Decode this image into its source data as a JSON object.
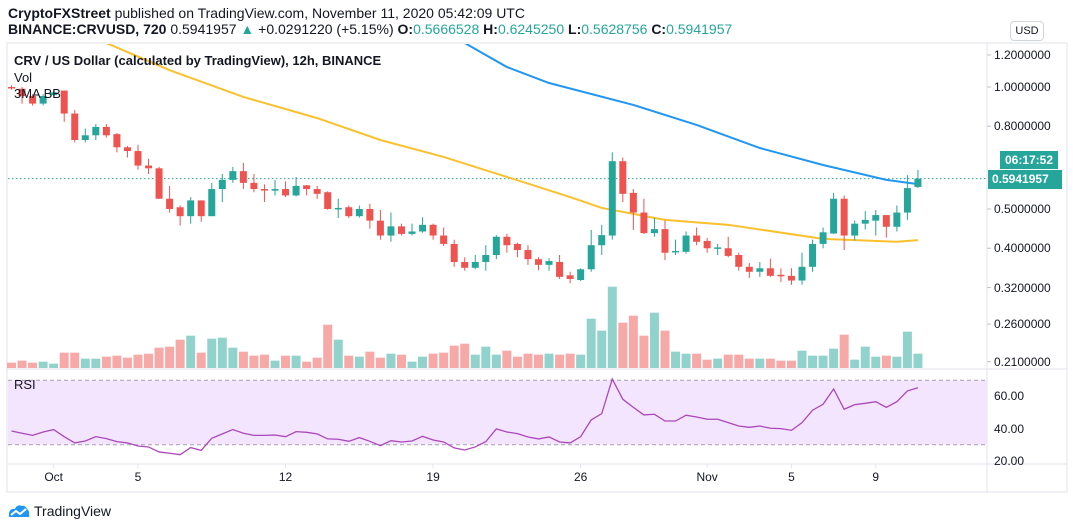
{
  "header": {
    "publisher": "CryptoFXStreet",
    "published_text": "published on TradingView.com, November 11, 2020 05:42:09 UTC",
    "symbol": "BINANCE:CRVUSD, 720",
    "last": "0.5941957",
    "change": "+0.0291220 (+5.15%)",
    "change_icon": "triangle-up-icon",
    "o_label": "O:",
    "o": "0.5666528",
    "h_label": "H:",
    "h": "0.6245250",
    "l_label": "L:",
    "l": "0.5628756",
    "c_label": "C:",
    "c": "0.5941957"
  },
  "legend": {
    "title": "CRV / US Dollar (calculated by TradingView), 12h, BINANCE",
    "vol": "Vol",
    "ma": "3MA BB",
    "rsi": "RSI"
  },
  "price_axis": {
    "currency_button": "USD",
    "scale": "log",
    "ticks": [
      "1.2000000",
      "1.0000000",
      "0.8000000",
      "0.5000000",
      "0.4000000",
      "0.3200000",
      "0.2600000",
      "0.2100000"
    ],
    "last_price_label": "0.5941957",
    "countdown": "06:17:52"
  },
  "rsi_axis": {
    "ticks": [
      "60.00",
      "40.00",
      "20.00"
    ],
    "upper_band": 70,
    "lower_band": 30
  },
  "time_axis": {
    "ticks": [
      {
        "label": "Oct",
        "t": "10-01 00"
      },
      {
        "label": "5",
        "t": "10-05 00"
      },
      {
        "label": "12",
        "t": "10-12 00"
      },
      {
        "label": "19",
        "t": "10-19 00"
      },
      {
        "label": "26",
        "t": "10-26 00"
      },
      {
        "label": "Nov",
        "t": "11-01 00"
      },
      {
        "label": "5",
        "t": "11-05 00"
      },
      {
        "label": "9",
        "t": "11-09 00"
      }
    ]
  },
  "footer": {
    "brand": "TradingView"
  },
  "colors": {
    "up": "#26a69a",
    "down": "#ef5350",
    "vol_up": "#92d2cc",
    "vol_down": "#f7a9a7",
    "ma_blue": "#2196f3",
    "ma_yellow": "#fbc02d",
    "rsi_line": "#ab47bc",
    "rsi_fill": "#f3e5fd"
  },
  "chart_data": {
    "type": "candlestick",
    "interval": "12h",
    "columns": [
      "t",
      "open",
      "high",
      "low",
      "close",
      "volume_rel"
    ],
    "candles": [
      [
        "09-29 00",
        1.0,
        1.01,
        0.985,
        0.995,
        16
      ],
      [
        "09-29 12",
        0.99,
        1.0,
        0.91,
        0.95,
        22
      ],
      [
        "09-30 00",
        0.95,
        0.96,
        0.9,
        0.91,
        16
      ],
      [
        "09-30 12",
        0.91,
        0.96,
        0.9,
        0.95,
        19
      ],
      [
        "10-01 00",
        0.955,
        0.98,
        0.95,
        0.97,
        13
      ],
      [
        "10-01 12",
        0.98,
        0.98,
        0.82,
        0.86,
        46
      ],
      [
        "10-02 00",
        0.86,
        0.877,
        0.73,
        0.74,
        46
      ],
      [
        "10-02 12",
        0.74,
        0.79,
        0.73,
        0.76,
        28
      ],
      [
        "10-03 00",
        0.76,
        0.81,
        0.74,
        0.797,
        28
      ],
      [
        "10-03 12",
        0.797,
        0.81,
        0.75,
        0.76,
        34
      ],
      [
        "10-04 00",
        0.765,
        0.77,
        0.69,
        0.71,
        37
      ],
      [
        "10-04 12",
        0.71,
        0.715,
        0.67,
        0.695,
        31
      ],
      [
        "10-05 00",
        0.695,
        0.72,
        0.625,
        0.64,
        40
      ],
      [
        "10-05 12",
        0.64,
        0.665,
        0.61,
        0.63,
        43
      ],
      [
        "10-06 00",
        0.63,
        0.635,
        0.53,
        0.53,
        61
      ],
      [
        "10-06 12",
        0.53,
        0.57,
        0.49,
        0.5,
        64
      ],
      [
        "10-07 00",
        0.505,
        0.51,
        0.455,
        0.48,
        85
      ],
      [
        "10-07 12",
        0.48,
        0.535,
        0.46,
        0.525,
        97
      ],
      [
        "10-08 00",
        0.525,
        0.525,
        0.465,
        0.48,
        46
      ],
      [
        "10-08 12",
        0.48,
        0.58,
        0.48,
        0.56,
        88
      ],
      [
        "10-09 00",
        0.56,
        0.61,
        0.52,
        0.59,
        91
      ],
      [
        "10-09 12",
        0.59,
        0.635,
        0.58,
        0.62,
        61
      ],
      [
        "10-10 00",
        0.62,
        0.65,
        0.56,
        0.58,
        49
      ],
      [
        "10-10 12",
        0.58,
        0.61,
        0.55,
        0.56,
        37
      ],
      [
        "10-11 00",
        0.56,
        0.575,
        0.52,
        0.555,
        40
      ],
      [
        "10-11 12",
        0.555,
        0.59,
        0.54,
        0.56,
        22
      ],
      [
        "10-12 00",
        0.56,
        0.585,
        0.535,
        0.54,
        37
      ],
      [
        "10-12 12",
        0.54,
        0.6,
        0.537,
        0.57,
        37
      ],
      [
        "10-13 00",
        0.572,
        0.573,
        0.54,
        0.56,
        19
      ],
      [
        "10-13 12",
        0.56,
        0.57,
        0.53,
        0.545,
        31
      ],
      [
        "10-14 00",
        0.55,
        0.553,
        0.498,
        0.5,
        130
      ],
      [
        "10-14 12",
        0.5,
        0.53,
        0.475,
        0.503,
        85
      ],
      [
        "10-15 00",
        0.505,
        0.51,
        0.475,
        0.48,
        37
      ],
      [
        "10-15 12",
        0.48,
        0.51,
        0.476,
        0.5,
        34
      ],
      [
        "10-16 00",
        0.5,
        0.515,
        0.447,
        0.468,
        49
      ],
      [
        "10-16 12",
        0.468,
        0.497,
        0.42,
        0.43,
        31
      ],
      [
        "10-17 00",
        0.43,
        0.49,
        0.415,
        0.453,
        43
      ],
      [
        "10-17 12",
        0.453,
        0.46,
        0.43,
        0.434,
        40
      ],
      [
        "10-18 00",
        0.434,
        0.46,
        0.43,
        0.44,
        19
      ],
      [
        "10-18 12",
        0.44,
        0.477,
        0.437,
        0.457,
        34
      ],
      [
        "10-19 00",
        0.457,
        0.46,
        0.42,
        0.43,
        43
      ],
      [
        "10-19 12",
        0.43,
        0.45,
        0.405,
        0.41,
        46
      ],
      [
        "10-20 00",
        0.41,
        0.42,
        0.36,
        0.37,
        67
      ],
      [
        "10-20 12",
        0.37,
        0.38,
        0.352,
        0.358,
        73
      ],
      [
        "10-21 00",
        0.358,
        0.385,
        0.355,
        0.37,
        40
      ],
      [
        "10-21 12",
        0.37,
        0.407,
        0.352,
        0.385,
        64
      ],
      [
        "10-22 00",
        0.385,
        0.431,
        0.376,
        0.427,
        40
      ],
      [
        "10-22 12",
        0.427,
        0.434,
        0.39,
        0.407,
        52
      ],
      [
        "10-23 00",
        0.41,
        0.413,
        0.38,
        0.396,
        34
      ],
      [
        "10-23 12",
        0.396,
        0.407,
        0.364,
        0.376,
        43
      ],
      [
        "10-24 00",
        0.376,
        0.38,
        0.353,
        0.364,
        40
      ],
      [
        "10-24 12",
        0.364,
        0.378,
        0.352,
        0.372,
        43
      ],
      [
        "10-25 00",
        0.37,
        0.385,
        0.336,
        0.34,
        40
      ],
      [
        "10-25 12",
        0.343,
        0.35,
        0.328,
        0.336,
        43
      ],
      [
        "10-26 00",
        0.334,
        0.357,
        0.332,
        0.355,
        40
      ],
      [
        "10-26 12",
        0.355,
        0.444,
        0.35,
        0.407,
        148
      ],
      [
        "10-27 00",
        0.407,
        0.457,
        0.385,
        0.431,
        112
      ],
      [
        "10-27 12",
        0.43,
        0.69,
        0.42,
        0.656,
        244
      ],
      [
        "10-28 00",
        0.656,
        0.67,
        0.52,
        0.545,
        136
      ],
      [
        "10-28 12",
        0.548,
        0.56,
        0.444,
        0.49,
        157
      ],
      [
        "10-29 00",
        0.49,
        0.53,
        0.434,
        0.436,
        97
      ],
      [
        "10-29 12",
        0.436,
        0.475,
        0.427,
        0.446,
        166
      ],
      [
        "10-30 00",
        0.446,
        0.468,
        0.374,
        0.39,
        112
      ],
      [
        "10-30 12",
        0.392,
        0.42,
        0.385,
        0.394,
        49
      ],
      [
        "10-31 00",
        0.392,
        0.44,
        0.388,
        0.43,
        43
      ],
      [
        "10-31 12",
        0.43,
        0.45,
        0.407,
        0.415,
        43
      ],
      [
        "11-01 00",
        0.417,
        0.424,
        0.39,
        0.4,
        25
      ],
      [
        "11-01 12",
        0.4,
        0.41,
        0.385,
        0.402,
        28
      ],
      [
        "11-02 00",
        0.4,
        0.427,
        0.38,
        0.383,
        40
      ],
      [
        "11-02 12",
        0.385,
        0.39,
        0.352,
        0.36,
        40
      ],
      [
        "11-03 00",
        0.36,
        0.368,
        0.338,
        0.35,
        28
      ],
      [
        "11-03 12",
        0.35,
        0.37,
        0.34,
        0.357,
        28
      ],
      [
        "11-04 00",
        0.357,
        0.377,
        0.34,
        0.342,
        28
      ],
      [
        "11-04 12",
        0.344,
        0.357,
        0.33,
        0.342,
        22
      ],
      [
        "11-05 00",
        0.342,
        0.357,
        0.325,
        0.333,
        22
      ],
      [
        "11-05 12",
        0.333,
        0.39,
        0.325,
        0.36,
        52
      ],
      [
        "11-06 00",
        0.36,
        0.42,
        0.35,
        0.41,
        37
      ],
      [
        "11-06 12",
        0.41,
        0.45,
        0.4,
        0.438,
        37
      ],
      [
        "11-07 00",
        0.435,
        0.548,
        0.434,
        0.53,
        58
      ],
      [
        "11-07 12",
        0.53,
        0.54,
        0.396,
        0.43,
        100
      ],
      [
        "11-08 00",
        0.43,
        0.468,
        0.418,
        0.46,
        25
      ],
      [
        "11-08 12",
        0.46,
        0.494,
        0.445,
        0.47,
        64
      ],
      [
        "11-09 00",
        0.468,
        0.497,
        0.43,
        0.483,
        34
      ],
      [
        "11-09 12",
        0.483,
        0.483,
        0.425,
        0.452,
        37
      ],
      [
        "11-10 00",
        0.452,
        0.51,
        0.44,
        0.49,
        34
      ],
      [
        "11-10 12",
        0.49,
        0.606,
        0.47,
        0.563,
        109
      ],
      [
        "11-11 00",
        0.5666528,
        0.624525,
        0.5628756,
        0.5941957,
        43
      ]
    ],
    "ma_blue": [
      [
        "10-20 12",
        1.284
      ],
      [
        "10-22 12",
        1.12
      ],
      [
        "10-24 12",
        1.023
      ],
      [
        "10-28 12",
        0.903
      ],
      [
        "10-31 12",
        0.806
      ],
      [
        "11-03 12",
        0.707
      ],
      [
        "11-06 12",
        0.642
      ],
      [
        "11-09 12",
        0.59
      ],
      [
        "11-11 00",
        0.576
      ]
    ],
    "ma_yellow": [
      [
        "10-03 12",
        1.284
      ],
      [
        "10-06 12",
        1.1
      ],
      [
        "10-10 00",
        0.945
      ],
      [
        "10-13 12",
        0.838
      ],
      [
        "10-16 12",
        0.74
      ],
      [
        "10-19 12",
        0.672
      ],
      [
        "10-22 12",
        0.6
      ],
      [
        "10-25 12",
        0.535
      ],
      [
        "10-27 00",
        0.503
      ],
      [
        "10-30 00",
        0.47
      ],
      [
        "11-02 00",
        0.457
      ],
      [
        "11-06 12",
        0.422
      ],
      [
        "11-10 00",
        0.415
      ],
      [
        "11-11 00",
        0.419
      ]
    ],
    "rsi": [
      38.5,
      37.1,
      35.8,
      37.9,
      39.4,
      35,
      31.1,
      32.3,
      35,
      33.8,
      31.9,
      31.1,
      29.2,
      28.6,
      25.5,
      24.7,
      23.8,
      28.2,
      26.5,
      34,
      36.7,
      39.4,
      37.1,
      35.8,
      35.8,
      36,
      35,
      38.1,
      37.7,
      36.7,
      33.6,
      33.4,
      32.1,
      34.4,
      32.1,
      29.4,
      32.5,
      31.7,
      32.3,
      35.2,
      32.9,
      31.7,
      28,
      26.7,
      28.6,
      31.9,
      39.8,
      37.9,
      36.9,
      34.8,
      33.6,
      34.8,
      31.7,
      31.1,
      35,
      45.4,
      49.3,
      70.8,
      58.2,
      53.2,
      48.5,
      48.9,
      44.7,
      44.7,
      48.3,
      47.2,
      45.8,
      45.8,
      43.7,
      41.6,
      40.8,
      41.6,
      40.2,
      40,
      38.9,
      43.7,
      51.4,
      55.1,
      64.6,
      52,
      54.9,
      55.7,
      56.7,
      53.2,
      56.7,
      63.4,
      65.4
    ]
  }
}
